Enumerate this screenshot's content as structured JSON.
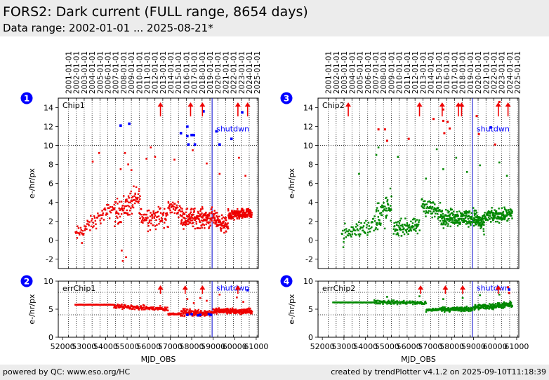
{
  "header": {
    "title": "FORS2: Dark current (FULL range, 8654 days)",
    "subtitle": "Data range: 2002-01-01 ... 2025-08-21*"
  },
  "footer": {
    "left": "powered by QC: www.eso.org/HC",
    "right": "created by trendPlotter v4.1.2 on 2025-09-10T11:18:39"
  },
  "colors": {
    "chip1": "#ee0000",
    "chip2": "#008800",
    "highlight": "#0000ff",
    "marker": "#ee0000",
    "shutdown_line": "#0000cc",
    "badge": "#0000ff"
  },
  "chart_data": [
    {
      "id": "chip1",
      "badge": "1",
      "type": "scatter",
      "label": "Chip1",
      "ylabel": "e-/hr/px",
      "ylim": [
        -3,
        15
      ],
      "yticks": [
        -2,
        0,
        2,
        4,
        6,
        8,
        10,
        12,
        14
      ],
      "ref_lines": [
        10
      ],
      "shutdown_label": "shutdwn",
      "shutdown_mjd": 58950,
      "color_key": "chip1",
      "segments": [
        {
          "x0": 52600,
          "x1": 54400,
          "y0": 0.5,
          "y1": 3.5,
          "spread": 1.2,
          "n": 75
        },
        {
          "x0": 54400,
          "x1": 55600,
          "y0": 2.8,
          "y1": 4.5,
          "spread": 2.0,
          "n": 95
        },
        {
          "x0": 55600,
          "x1": 56900,
          "y0": 2.5,
          "y1": 2.3,
          "spread": 1.8,
          "n": 85
        },
        {
          "x0": 56900,
          "x1": 57500,
          "y0": 3.6,
          "y1": 3.2,
          "spread": 1.0,
          "n": 40
        },
        {
          "x0": 57500,
          "x1": 58950,
          "y0": 2.4,
          "y1": 2.3,
          "spread": 1.5,
          "n": 160
        },
        {
          "x0": 59000,
          "x1": 59700,
          "y0": 2.3,
          "y1": 1.4,
          "spread": 1.2,
          "n": 90
        },
        {
          "x0": 59700,
          "x1": 60800,
          "y0": 2.6,
          "y1": 2.8,
          "spread": 0.8,
          "n": 170
        }
      ],
      "outliers": [
        {
          "x": 53400,
          "y": 8.3
        },
        {
          "x": 53700,
          "y": 9.2
        },
        {
          "x": 54700,
          "y": 7.5
        },
        {
          "x": 54900,
          "y": 9.2
        },
        {
          "x": 55050,
          "y": 8.0
        },
        {
          "x": 55200,
          "y": 7.4
        },
        {
          "x": 55900,
          "y": 8.6
        },
        {
          "x": 56100,
          "y": 9.8
        },
        {
          "x": 56300,
          "y": 8.8
        },
        {
          "x": 57200,
          "y": 8.5
        },
        {
          "x": 58050,
          "y": 9.5
        },
        {
          "x": 58700,
          "y": 8.1
        },
        {
          "x": 59300,
          "y": 7.0
        },
        {
          "x": 60200,
          "y": 8.7
        },
        {
          "x": 60500,
          "y": 6.8
        },
        {
          "x": 54750,
          "y": -1.1
        },
        {
          "x": 54800,
          "y": -2.2
        },
        {
          "x": 54950,
          "y": -1.8
        },
        {
          "x": 52900,
          "y": -0.3
        }
      ],
      "points_alt": [
        {
          "x": 54700,
          "y": 12.1
        },
        {
          "x": 55100,
          "y": 12.3
        },
        {
          "x": 57500,
          "y": 11.3
        },
        {
          "x": 57800,
          "y": 12.0
        },
        {
          "x": 57800,
          "y": 11.0
        },
        {
          "x": 58000,
          "y": 11.1
        },
        {
          "x": 58100,
          "y": 11.1
        },
        {
          "x": 57850,
          "y": 10.1
        },
        {
          "x": 58150,
          "y": 10.1
        },
        {
          "x": 58550,
          "y": 13.6
        },
        {
          "x": 59150,
          "y": 11.5
        },
        {
          "x": 59300,
          "y": 10.1
        },
        {
          "x": 59850,
          "y": 10.7
        },
        {
          "x": 60350,
          "y": 13.5
        }
      ],
      "arrows": [
        56550,
        57950,
        58500,
        60150,
        60600
      ]
    },
    {
      "id": "errchip1",
      "badge": "2",
      "type": "scatter",
      "label": "errChip1",
      "ylabel": "e-/hr/px",
      "ylim": [
        0,
        10
      ],
      "yticks": [
        0,
        5,
        10
      ],
      "ref_lines": [
        8,
        4
      ],
      "shutdown_label": "shutdwn",
      "shutdown_mjd": 58950,
      "color_key": "chip1",
      "segments": [
        {
          "x0": 52600,
          "x1": 54400,
          "y0": 5.8,
          "y1": 5.8,
          "spread": 0.05,
          "n": 80
        },
        {
          "x0": 54400,
          "x1": 56900,
          "y0": 5.5,
          "y1": 5.0,
          "spread": 0.6,
          "n": 140
        },
        {
          "x0": 56900,
          "x1": 57500,
          "y0": 4.1,
          "y1": 4.2,
          "spread": 0.25,
          "n": 35
        },
        {
          "x0": 57500,
          "x1": 58950,
          "y0": 4.4,
          "y1": 4.3,
          "spread": 0.9,
          "n": 140
        },
        {
          "x0": 59000,
          "x1": 60800,
          "y0": 4.7,
          "y1": 4.6,
          "spread": 0.7,
          "n": 220
        }
      ],
      "outliers": [
        {
          "x": 57800,
          "y": 6.8
        },
        {
          "x": 58400,
          "y": 7.0
        },
        {
          "x": 58700,
          "y": 6.5
        },
        {
          "x": 59300,
          "y": 7.6
        },
        {
          "x": 60100,
          "y": 7.1
        },
        {
          "x": 60400,
          "y": 6.3
        },
        {
          "x": 58100,
          "y": 6.1
        }
      ],
      "points_alt": [
        {
          "x": 57800,
          "y": 4.0
        },
        {
          "x": 58000,
          "y": 4.1
        },
        {
          "x": 58300,
          "y": 3.9
        },
        {
          "x": 58400,
          "y": 4.0
        },
        {
          "x": 58800,
          "y": 4.1
        },
        {
          "x": 58900,
          "y": 4.0
        },
        {
          "x": 60600,
          "y": 8.4
        }
      ],
      "arrows": [
        56550,
        57700,
        58500,
        60150
      ]
    },
    {
      "id": "chip2",
      "badge": "3",
      "type": "scatter",
      "label": "Chip2",
      "ylabel": "e-/hr/px",
      "ylim": [
        -3,
        15
      ],
      "yticks": [
        -2,
        0,
        2,
        4,
        6,
        8,
        10,
        12,
        14
      ],
      "ref_lines": [
        10
      ],
      "shutdown_label": "shutdwn",
      "shutdown_mjd": 58950,
      "color_key": "chip2",
      "segments": [
        {
          "x0": 52900,
          "x1": 54500,
          "y0": 0.5,
          "y1": 1.8,
          "spread": 1.5,
          "n": 75
        },
        {
          "x0": 54500,
          "x1": 55200,
          "y0": 2.5,
          "y1": 3.5,
          "spread": 2.5,
          "n": 60
        },
        {
          "x0": 55300,
          "x1": 56500,
          "y0": 1.3,
          "y1": 1.4,
          "spread": 1.2,
          "n": 90
        },
        {
          "x0": 56600,
          "x1": 57500,
          "y0": 3.8,
          "y1": 2.8,
          "spread": 1.5,
          "n": 70
        },
        {
          "x0": 57500,
          "x1": 58950,
          "y0": 2.4,
          "y1": 2.4,
          "spread": 1.3,
          "n": 170
        },
        {
          "x0": 59000,
          "x1": 59500,
          "y0": 2.5,
          "y1": 1.5,
          "spread": 1.3,
          "n": 80
        },
        {
          "x0": 59500,
          "x1": 60800,
          "y0": 2.5,
          "y1": 2.7,
          "spread": 1.0,
          "n": 140
        }
      ],
      "outliers": [
        {
          "x": 54500,
          "y": 9.0
        },
        {
          "x": 54600,
          "y": 9.8
        },
        {
          "x": 55500,
          "y": 8.8
        },
        {
          "x": 56800,
          "y": 6.5
        },
        {
          "x": 57300,
          "y": 9.6
        },
        {
          "x": 57600,
          "y": 7.5
        },
        {
          "x": 58200,
          "y": 8.7
        },
        {
          "x": 58700,
          "y": 7.2
        },
        {
          "x": 59300,
          "y": 7.9
        },
        {
          "x": 60200,
          "y": 8.2
        },
        {
          "x": 60550,
          "y": 6.8
        },
        {
          "x": 53700,
          "y": 7.0
        }
      ],
      "points_red": [
        {
          "x": 54600,
          "y": 11.7
        },
        {
          "x": 54900,
          "y": 11.7
        },
        {
          "x": 55000,
          "y": 10.5
        },
        {
          "x": 56000,
          "y": 10.7
        },
        {
          "x": 57150,
          "y": 12.8
        },
        {
          "x": 57600,
          "y": 13.8
        },
        {
          "x": 57600,
          "y": 12.6
        },
        {
          "x": 57800,
          "y": 12.5
        },
        {
          "x": 57900,
          "y": 11.8
        },
        {
          "x": 57650,
          "y": 11.3
        },
        {
          "x": 59150,
          "y": 13.1
        },
        {
          "x": 59250,
          "y": 11.2
        },
        {
          "x": 60000,
          "y": 10.1
        },
        {
          "x": 60200,
          "y": 14.6
        }
      ],
      "points_alt": [
        {
          "x": 59800,
          "y": 11.9
        }
      ],
      "arrows": [
        53200,
        56500,
        57550,
        58300,
        58450,
        60150,
        60600
      ]
    },
    {
      "id": "errchip2",
      "badge": "4",
      "type": "scatter",
      "label": "errChip2",
      "ylabel": "e-/hr/px",
      "ylim": [
        0,
        10
      ],
      "yticks": [
        0,
        5,
        10
      ],
      "ref_lines": [
        8,
        4
      ],
      "shutdown_label": "shutdwn",
      "shutdown_mjd": 58950,
      "color_key": "chip2",
      "segments": [
        {
          "x0": 52500,
          "x1": 54400,
          "y0": 6.2,
          "y1": 6.2,
          "spread": 0.05,
          "n": 80
        },
        {
          "x0": 54400,
          "x1": 56800,
          "y0": 6.3,
          "y1": 6.1,
          "spread": 0.5,
          "n": 130
        },
        {
          "x0": 56800,
          "x1": 57500,
          "y0": 4.8,
          "y1": 5.0,
          "spread": 0.4,
          "n": 40
        },
        {
          "x0": 57500,
          "x1": 58950,
          "y0": 5.0,
          "y1": 5.0,
          "spread": 0.6,
          "n": 140
        },
        {
          "x0": 59000,
          "x1": 60800,
          "y0": 5.3,
          "y1": 5.8,
          "spread": 0.7,
          "n": 200
        }
      ],
      "outliers": [
        {
          "x": 55000,
          "y": 7.2
        },
        {
          "x": 56500,
          "y": 7.3
        },
        {
          "x": 57600,
          "y": 6.8
        },
        {
          "x": 58500,
          "y": 7.0
        },
        {
          "x": 59300,
          "y": 7.5
        },
        {
          "x": 60200,
          "y": 7.6
        }
      ],
      "points_red": [
        {
          "x": 60600,
          "y": 8.9
        },
        {
          "x": 60650,
          "y": 7.9
        }
      ],
      "points_alt": [
        {
          "x": 60650,
          "y": 8.5
        }
      ],
      "arrows": [
        56550,
        57700,
        58500,
        60150
      ]
    }
  ],
  "axes": {
    "xlim": [
      51800,
      61100
    ],
    "xticks": [
      52000,
      53000,
      54000,
      55000,
      56000,
      57000,
      58000,
      59000,
      60000,
      61000
    ],
    "xlabel": "MJD_OBS",
    "date_ticks": [
      {
        "mjd": 52275,
        "label": "2001-01-01"
      },
      {
        "mjd": 52640,
        "label": "2002-01-01"
      },
      {
        "mjd": 53005,
        "label": "2003-01-01"
      },
      {
        "mjd": 53371,
        "label": "2004-01-01"
      },
      {
        "mjd": 53736,
        "label": "2005-01-01"
      },
      {
        "mjd": 54101,
        "label": "2006-01-01"
      },
      {
        "mjd": 54466,
        "label": "2007-01-01"
      },
      {
        "mjd": 54832,
        "label": "2008-01-01"
      },
      {
        "mjd": 55197,
        "label": "2009-01-01"
      },
      {
        "mjd": 55562,
        "label": "2010-01-01"
      },
      {
        "mjd": 55927,
        "label": "2011-01-01"
      },
      {
        "mjd": 56293,
        "label": "2012-01-01"
      },
      {
        "mjd": 56658,
        "label": "2013-01-01"
      },
      {
        "mjd": 57023,
        "label": "2014-01-01"
      },
      {
        "mjd": 57388,
        "label": "2015-01-01"
      },
      {
        "mjd": 57754,
        "label": "2016-01-01"
      },
      {
        "mjd": 58119,
        "label": "2017-01-01"
      },
      {
        "mjd": 58484,
        "label": "2018-01-01"
      },
      {
        "mjd": 58849,
        "label": "2019-01-01"
      },
      {
        "mjd": 59215,
        "label": "2020-01-01"
      },
      {
        "mjd": 59580,
        "label": "2021-01-01"
      },
      {
        "mjd": 59945,
        "label": "2022-01-01"
      },
      {
        "mjd": 60310,
        "label": "2023-01-01"
      },
      {
        "mjd": 60676,
        "label": "2024-01-01"
      },
      {
        "mjd": 61041,
        "label": "2025-01-01"
      }
    ]
  }
}
